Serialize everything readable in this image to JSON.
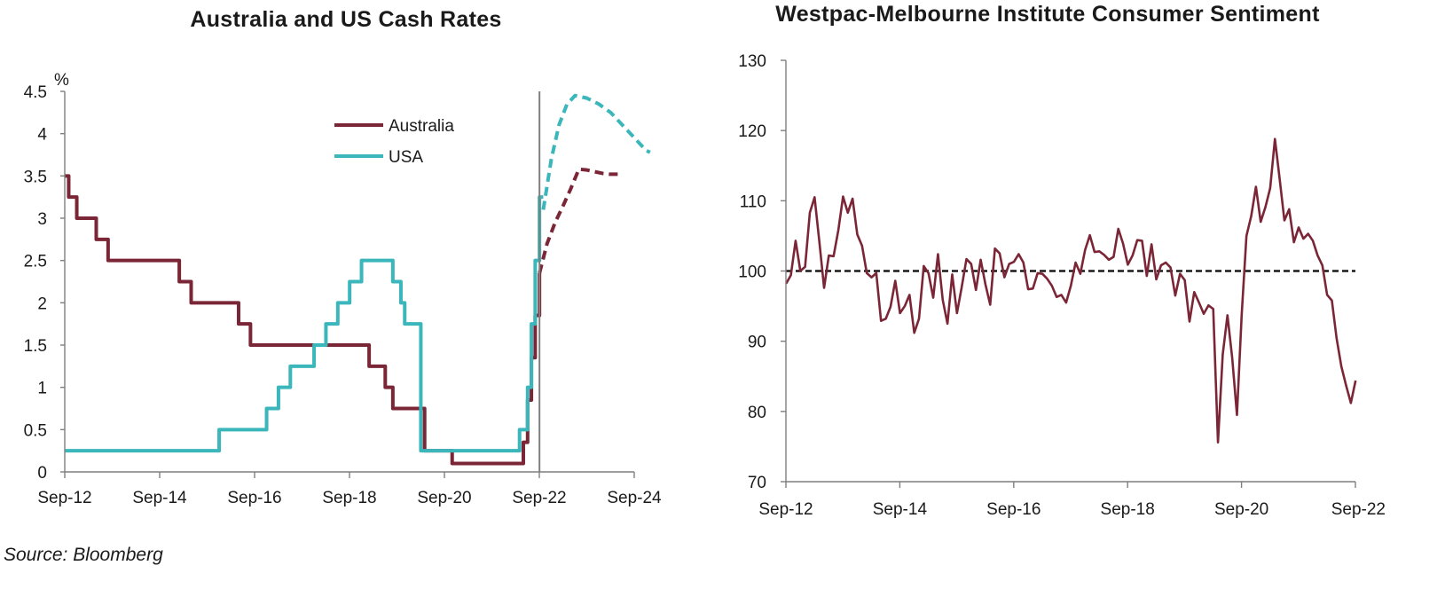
{
  "source": "Source: Bloomberg",
  "colors": {
    "australia": "#7b2636",
    "usa": "#3bb6bb",
    "axis": "#7f7f7f",
    "divider": "#7f7f7f"
  },
  "chart_data": [
    {
      "type": "line",
      "title": "Australia and US Cash Rates",
      "ylabel": "%",
      "xlabel": "",
      "ylim": [
        0,
        4.5
      ],
      "yticks": [
        0,
        0.5,
        1,
        1.5,
        2,
        2.5,
        3,
        3.5,
        4,
        4.5
      ],
      "ytick_labels": [
        "0",
        "0.5",
        "1",
        "1.5",
        "2",
        "2.5",
        "3",
        "3.5",
        "4",
        "4.5"
      ],
      "xlim": [
        "Sep-12",
        "Sep-24"
      ],
      "xtick_labels": [
        "Sep-12",
        "Sep-14",
        "Sep-16",
        "Sep-18",
        "Sep-20",
        "Sep-22",
        "Sep-24"
      ],
      "x_unit": "year",
      "vertical_marker_x": 2022.67,
      "legend": {
        "placement": "top-center",
        "entries": [
          "Australia",
          "USA"
        ]
      },
      "series": [
        {
          "name": "Australia",
          "color": "#7b2636",
          "style": "step",
          "x": [
            2012.67,
            2012.75,
            2012.92,
            2013.33,
            2013.58,
            2014.0,
            2015.08,
            2015.33,
            2016.33,
            2016.58,
            2016.92,
            2019.08,
            2019.42,
            2019.58,
            2020.25,
            2020.83,
            2021.0,
            2022.33,
            2022.42,
            2022.5,
            2022.58,
            2022.67
          ],
          "y": [
            3.5,
            3.25,
            3.0,
            2.75,
            2.5,
            2.5,
            2.25,
            2.0,
            1.75,
            1.5,
            1.5,
            1.25,
            1.0,
            0.75,
            0.25,
            0.1,
            0.1,
            0.35,
            0.85,
            1.35,
            1.85,
            2.35
          ]
        },
        {
          "name": "Australia forecast",
          "color": "#7b2636",
          "style": "dashed",
          "x": [
            2022.67,
            2022.83,
            2023.0,
            2023.17,
            2023.33,
            2023.5,
            2023.67,
            2023.83,
            2024.0,
            2024.17,
            2024.33
          ],
          "y": [
            2.35,
            2.7,
            2.95,
            3.15,
            3.35,
            3.58,
            3.57,
            3.55,
            3.53,
            3.52,
            3.52
          ]
        },
        {
          "name": "USA",
          "color": "#3bb6bb",
          "style": "step",
          "x": [
            2012.67,
            2015.92,
            2016.92,
            2017.17,
            2017.42,
            2017.92,
            2018.17,
            2018.42,
            2018.67,
            2018.92,
            2019.58,
            2019.75,
            2019.83,
            2020.17,
            2022.25,
            2022.42,
            2022.5,
            2022.58,
            2022.67,
            2022.75
          ],
          "y": [
            0.25,
            0.5,
            0.75,
            1.0,
            1.25,
            1.5,
            1.75,
            2.0,
            2.25,
            2.5,
            2.25,
            2.0,
            1.75,
            0.25,
            0.5,
            1.0,
            1.75,
            2.5,
            3.25,
            3.25
          ]
        },
        {
          "name": "USA forecast",
          "color": "#3bb6bb",
          "style": "dashed",
          "x": [
            2022.75,
            2022.92,
            2023.08,
            2023.25,
            2023.42,
            2023.67,
            2023.92,
            2024.17,
            2024.42,
            2024.67,
            2024.92,
            2025.0
          ],
          "y": [
            3.1,
            3.7,
            4.1,
            4.35,
            4.45,
            4.42,
            4.35,
            4.25,
            4.1,
            3.95,
            3.8,
            3.78
          ]
        }
      ]
    },
    {
      "type": "line",
      "title": "Westpac-Melbourne Institute Consumer Sentiment",
      "xlabel": "",
      "ylabel": "",
      "ylim": [
        70,
        130
      ],
      "yticks": [
        70,
        80,
        90,
        100,
        110,
        120,
        130
      ],
      "ytick_labels": [
        "70",
        "80",
        "90",
        "100",
        "110",
        "120",
        "130"
      ],
      "xlim": [
        "Sep-12",
        "Sep-22"
      ],
      "xtick_labels": [
        "Sep-12",
        "Sep-14",
        "Sep-16",
        "Sep-18",
        "Sep-20",
        "Sep-22"
      ],
      "x_unit": "year",
      "reference_line": {
        "y": 100,
        "style": "dashed",
        "color": "#1a1a1a"
      },
      "series": [
        {
          "name": "",
          "color": "#7b2636",
          "x_start": 2012.67,
          "x_step_months": 1,
          "y": [
            98.2,
            99.4,
            104.3,
            100.0,
            100.6,
            108.3,
            110.5,
            104.2,
            97.6,
            102.2,
            102.1,
            105.8,
            110.6,
            108.3,
            110.3,
            105.2,
            103.6,
            99.7,
            99.1,
            99.7,
            92.9,
            93.2,
            94.9,
            98.6,
            94.0,
            95.0,
            96.6,
            91.2,
            93.2,
            100.7,
            99.7,
            96.2,
            102.4,
            95.9,
            92.5,
            99.5,
            94.0,
            97.7,
            101.7,
            101.0,
            97.3,
            101.6,
            98.1,
            95.2,
            103.2,
            102.5,
            99.1,
            101.0,
            101.3,
            102.4,
            101.2,
            97.4,
            97.5,
            99.7,
            99.6,
            98.9,
            97.9,
            96.3,
            96.6,
            95.5,
            97.9,
            101.2,
            99.6,
            103.0,
            105.1,
            102.7,
            102.8,
            102.3,
            101.6,
            102.0,
            106.0,
            103.9,
            100.9,
            102.2,
            104.4,
            104.3,
            99.3,
            103.8,
            98.8,
            100.8,
            101.2,
            100.5,
            96.5,
            99.6,
            98.7,
            92.8,
            97.0,
            95.5,
            93.9,
            95.1,
            94.6,
            75.6,
            88.1,
            93.7,
            87.6,
            79.5,
            93.8,
            105.0,
            107.8,
            112.0,
            107.0,
            109.1,
            111.8,
            118.8,
            113.1,
            107.2,
            108.8,
            104.1,
            106.2,
            104.6,
            105.3,
            104.3,
            102.2,
            100.8,
            96.6,
            95.8,
            90.4,
            86.4,
            83.7,
            81.2,
            84.4
          ]
        }
      ]
    }
  ]
}
